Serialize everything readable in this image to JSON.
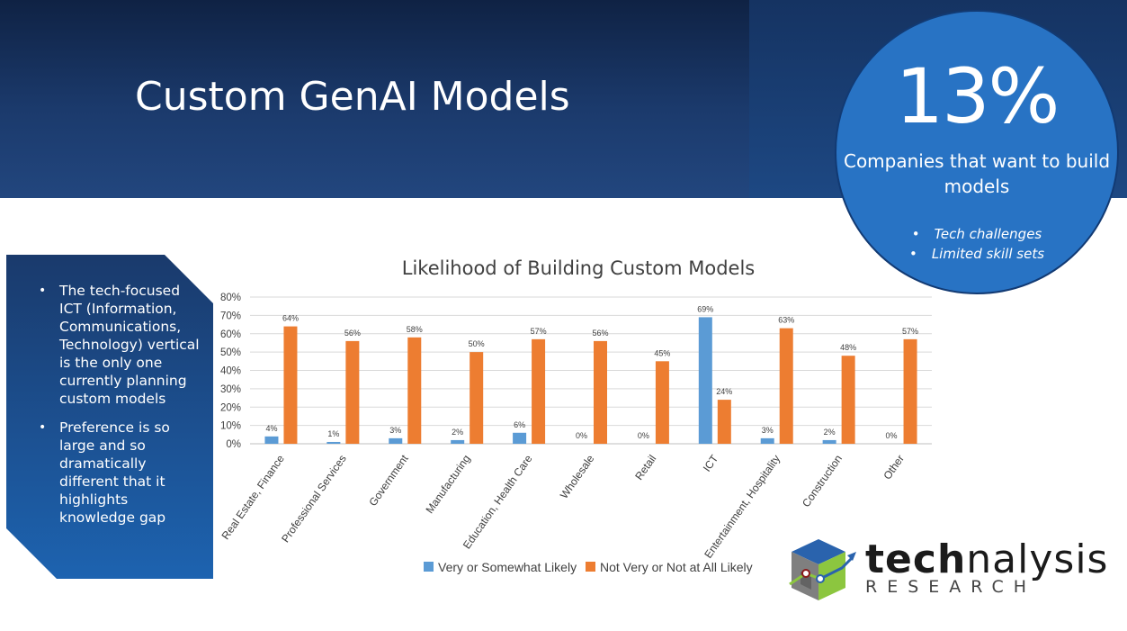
{
  "slide": {
    "title": "Custom GenAI Models"
  },
  "stat": {
    "value": "13%",
    "description": "Companies that want to build models",
    "bullets": [
      "Tech challenges",
      "Limited skill sets"
    ]
  },
  "sidebar": {
    "bullets": [
      "The tech-focused ICT (Information, Communications, Technology) vertical is the only one currently planning custom models",
      "Preference is so large and so dramatically different that it highlights knowledge gap"
    ]
  },
  "logo": {
    "word_bold": "tech",
    "word_rest": "nalysis",
    "sub": "RESEARCH"
  },
  "colors": {
    "likely": "#5b9bd5",
    "not_likely": "#ed7d31",
    "banner": "#1b3a6c",
    "circle": "#2873c4"
  },
  "chart_data": {
    "type": "bar",
    "title": "Likelihood of Building Custom Models",
    "categories": [
      "Real Estate, Finance",
      "Professional Services",
      "Government",
      "Manufacturing",
      "Education, Health Care",
      "Wholesale",
      "Retail",
      "ICT",
      "Entertainment, Hospitality",
      "Construction",
      "Other"
    ],
    "series": [
      {
        "name": "Very or Somewhat Likely",
        "values": [
          4,
          1,
          3,
          2,
          6,
          0,
          0,
          69,
          3,
          2,
          0
        ],
        "labels": [
          "4%",
          "1%",
          "3%",
          "2%",
          "6%",
          "0%",
          "0%",
          "69%",
          "3%",
          "2%",
          "0%"
        ]
      },
      {
        "name": "Not Very or Not at All Likely",
        "values": [
          64,
          56,
          58,
          50,
          57,
          56,
          45,
          24,
          63,
          48,
          57
        ],
        "labels": [
          "64%",
          "56%",
          "58%",
          "50%",
          "57%",
          "56%",
          "45%",
          "24%",
          "63%",
          "48%",
          "57%"
        ]
      }
    ],
    "ylim": [
      0,
      80
    ],
    "yticks": [
      "0%",
      "10%",
      "20%",
      "30%",
      "40%",
      "50%",
      "60%",
      "70%",
      "80%"
    ],
    "grid": true,
    "legend": "bottom"
  }
}
